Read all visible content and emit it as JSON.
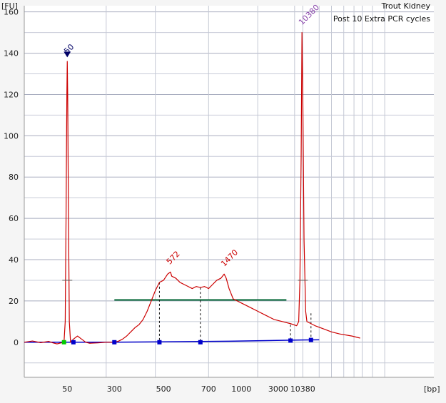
{
  "chart_data": {
    "type": "line",
    "title": "Trout Kidney",
    "subtitle": "Post 10 Extra PCR cycles",
    "ylabel": "[FU]",
    "xlabel": "[bp]",
    "ylim": [
      -17,
      163
    ],
    "y_ticks": [
      "160",
      "140",
      "120",
      "100",
      "80",
      "60",
      "40",
      "20",
      "0"
    ],
    "x_ticks": [
      "50",
      "300",
      "500",
      "700",
      "1000",
      "3000",
      "10380"
    ],
    "grid": true,
    "colors": {
      "trace": "#cc0000",
      "baseline": "#0000cc",
      "smear_bar": "#006633",
      "marker_lower": "#000066",
      "marker_upper": "#8844aa",
      "grid": "#b4b8c6"
    },
    "series": [
      {
        "values": [
          [
            0,
            0
          ],
          [
            2,
            0.6
          ],
          [
            4,
            -0.2
          ],
          [
            6,
            0.4
          ],
          [
            7,
            -0.3
          ],
          [
            8,
            -0.8
          ],
          [
            9,
            -0.3
          ],
          [
            9.7,
            0
          ],
          [
            10,
            10
          ],
          [
            10.2,
            60
          ],
          [
            10.4,
            120
          ],
          [
            10.5,
            136
          ],
          [
            10.6,
            120
          ],
          [
            10.8,
            60
          ],
          [
            11,
            10
          ],
          [
            11.3,
            0
          ],
          [
            12,
            1.5
          ],
          [
            13,
            3
          ],
          [
            14,
            1.5
          ],
          [
            15,
            0
          ],
          [
            16,
            -0.5
          ],
          [
            18,
            -0.3
          ],
          [
            20,
            0
          ],
          [
            22,
            0
          ],
          [
            23,
            0.5
          ],
          [
            24,
            1.5
          ],
          [
            25,
            3
          ],
          [
            26,
            5
          ],
          [
            27,
            7
          ],
          [
            28,
            8.5
          ],
          [
            29,
            11
          ],
          [
            30,
            15
          ],
          [
            31,
            20
          ],
          [
            32,
            25
          ],
          [
            32.5,
            27
          ],
          [
            33,
            29
          ],
          [
            34,
            30
          ],
          [
            35,
            33
          ],
          [
            35.7,
            34
          ],
          [
            36,
            32
          ],
          [
            37,
            31
          ],
          [
            38,
            29
          ],
          [
            39,
            28
          ],
          [
            40,
            27
          ],
          [
            41,
            26
          ],
          [
            42,
            27
          ],
          [
            43,
            26.5
          ],
          [
            44,
            27
          ],
          [
            45,
            26
          ],
          [
            46,
            28
          ],
          [
            47,
            30
          ],
          [
            48,
            31
          ],
          [
            48.8,
            33
          ],
          [
            49.3,
            31
          ],
          [
            50,
            26
          ],
          [
            51,
            21
          ],
          [
            53,
            19
          ],
          [
            55,
            17
          ],
          [
            57,
            15
          ],
          [
            59,
            13
          ],
          [
            61,
            11
          ],
          [
            63,
            10
          ],
          [
            65,
            9
          ],
          [
            66.5,
            8
          ],
          [
            67,
            10
          ],
          [
            67.3,
            30
          ],
          [
            67.6,
            90
          ],
          [
            67.8,
            150
          ],
          [
            68,
            120
          ],
          [
            68.3,
            50
          ],
          [
            68.7,
            15
          ],
          [
            69,
            10
          ],
          [
            71,
            8
          ],
          [
            73,
            6.5
          ],
          [
            75,
            5
          ],
          [
            77,
            4
          ],
          [
            80,
            3
          ],
          [
            82,
            2
          ]
        ]
      }
    ],
    "baseline": [
      [
        0,
        0
      ],
      [
        12,
        0
      ],
      [
        22,
        0
      ],
      [
        50,
        0.5
      ],
      [
        68,
        1.1
      ],
      [
        72,
        1.2
      ]
    ],
    "smear": {
      "from": 22,
      "to": 64,
      "y": 20.5
    },
    "markers_points": [
      [
        12,
        0
      ],
      [
        22,
        0
      ],
      [
        33,
        0
      ],
      [
        43,
        0
      ],
      [
        65,
        0.8
      ],
      [
        70,
        1.1
      ]
    ],
    "dashed_links": [
      [
        33,
        29
      ],
      [
        43,
        26.5
      ],
      [
        65,
        8.5
      ],
      [
        70,
        14
      ]
    ],
    "tick_marks": [
      [
        10.5,
        30
      ],
      [
        68,
        30
      ]
    ],
    "peak_labels": [
      {
        "text": "50",
        "x": 10.5,
        "y": 136,
        "color_key": "marker_lower"
      },
      {
        "text": "572",
        "x": 35.5,
        "y": 34,
        "color_key": "trace"
      },
      {
        "text": "1470",
        "x": 48.8,
        "y": 33,
        "color_key": "trace"
      },
      {
        "text": "10380",
        "x": 67.8,
        "y": 150,
        "color_key": "marker_upper"
      }
    ]
  }
}
